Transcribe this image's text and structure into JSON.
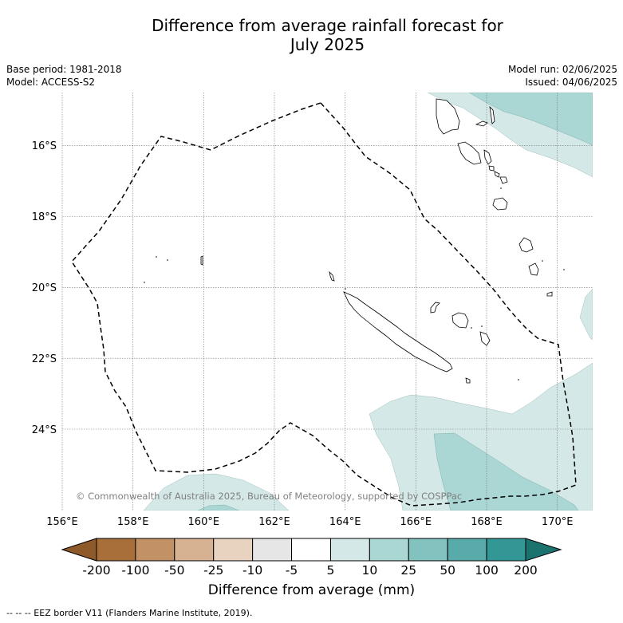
{
  "title": {
    "line1": "Difference from average rainfall forecast for",
    "line2": "July 2025"
  },
  "meta_left": {
    "base_period": "Base period: 1981-2018",
    "model": "Model: ACCESS-S2"
  },
  "meta_right": {
    "model_run": "Model run: 02/06/2025",
    "issued": "Issued: 04/06/2025"
  },
  "copyright": "© Commonwealth of Australia 2025, Bureau of Meteorology, supported by COSPPac",
  "map": {
    "lon_range": [
      156,
      171
    ],
    "lat_range": [
      -26.2,
      -14.4
    ],
    "lon_ticks": [
      156,
      158,
      160,
      162,
      164,
      166,
      168,
      170
    ],
    "lon_labels": [
      "156°E",
      "158°E",
      "160°E",
      "162°E",
      "164°E",
      "166°E",
      "168°E",
      "170°E"
    ],
    "lat_ticks": [
      -16,
      -18,
      -20,
      -22,
      -24
    ],
    "lat_labels": [
      "16°S",
      "18°S",
      "20°S",
      "22°S",
      "24°S"
    ],
    "grid": true
  },
  "colorbar": {
    "label": "Difference from average (mm)",
    "bounds": [
      "-200",
      "-100",
      "-50",
      "-25",
      "-10",
      "-5",
      "5",
      "10",
      "25",
      "50",
      "100",
      "200"
    ],
    "colors": [
      "#a86f3b",
      "#c29166",
      "#d6b192",
      "#e7d3c0",
      "#e6e6e6",
      "#ffffff",
      "#d4e9e7",
      "#aad6d4",
      "#82c2bf",
      "#59abaa",
      "#329795"
    ],
    "under_color": "#8f5a2a",
    "over_color": "#1b7370"
  },
  "footer": "--  --  -- EEZ border V11 (Flanders Marine Institute, 2019)."
}
